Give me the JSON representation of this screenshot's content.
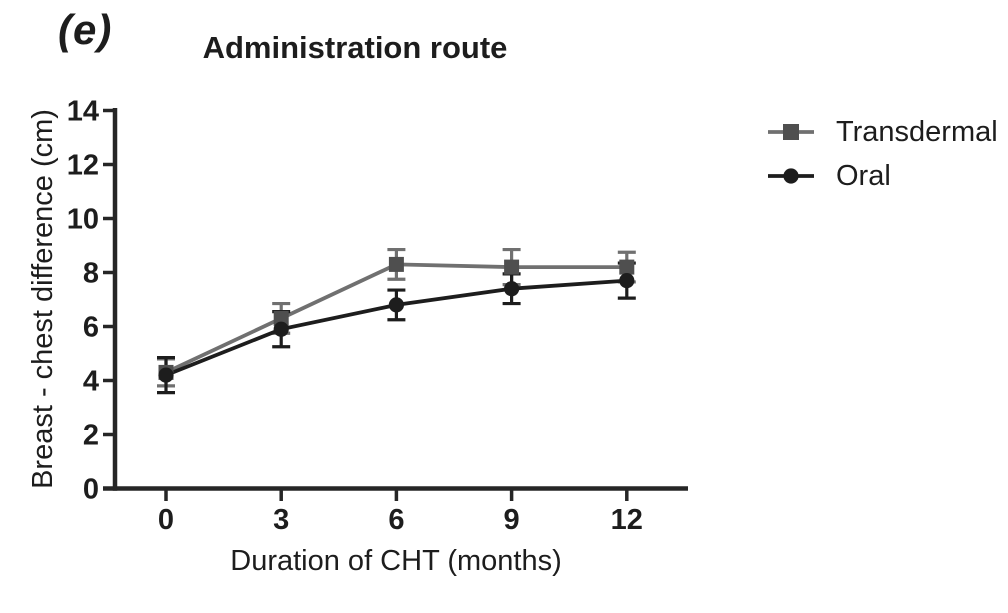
{
  "figure": {
    "panel_label": "(e)"
  },
  "chart_data": {
    "type": "line",
    "title": "Administration route",
    "xlabel": "Duration of CHT (months)",
    "ylabel": "Breast - chest difference (cm)",
    "x": [
      0,
      3,
      6,
      9,
      12
    ],
    "xticks": [
      0,
      3,
      6,
      9,
      12
    ],
    "yticks": [
      0,
      2,
      4,
      6,
      8,
      10,
      12,
      14
    ],
    "ylim": [
      0,
      14
    ],
    "grid": false,
    "legend_position": "right",
    "error_bars": "symmetric, approx +/-0.5 to 0.7 cm (read from pixels)",
    "series": [
      {
        "name": "Transdermal",
        "marker": "square",
        "line_color": "#707070",
        "marker_color": "#4f4f4f",
        "values": [
          4.3,
          6.3,
          8.3,
          8.2,
          8.2
        ],
        "errors": [
          0.5,
          0.55,
          0.55,
          0.65,
          0.55
        ]
      },
      {
        "name": "Oral",
        "marker": "circle",
        "line_color": "#1d1d1d",
        "marker_color": "#1d1d1d",
        "values": [
          4.2,
          5.9,
          6.8,
          7.4,
          7.7
        ],
        "errors": [
          0.65,
          0.65,
          0.55,
          0.55,
          0.65
        ]
      }
    ]
  },
  "colors": {
    "axis": "#262626",
    "text": "#1d1d1d",
    "background": "#ffffff"
  }
}
